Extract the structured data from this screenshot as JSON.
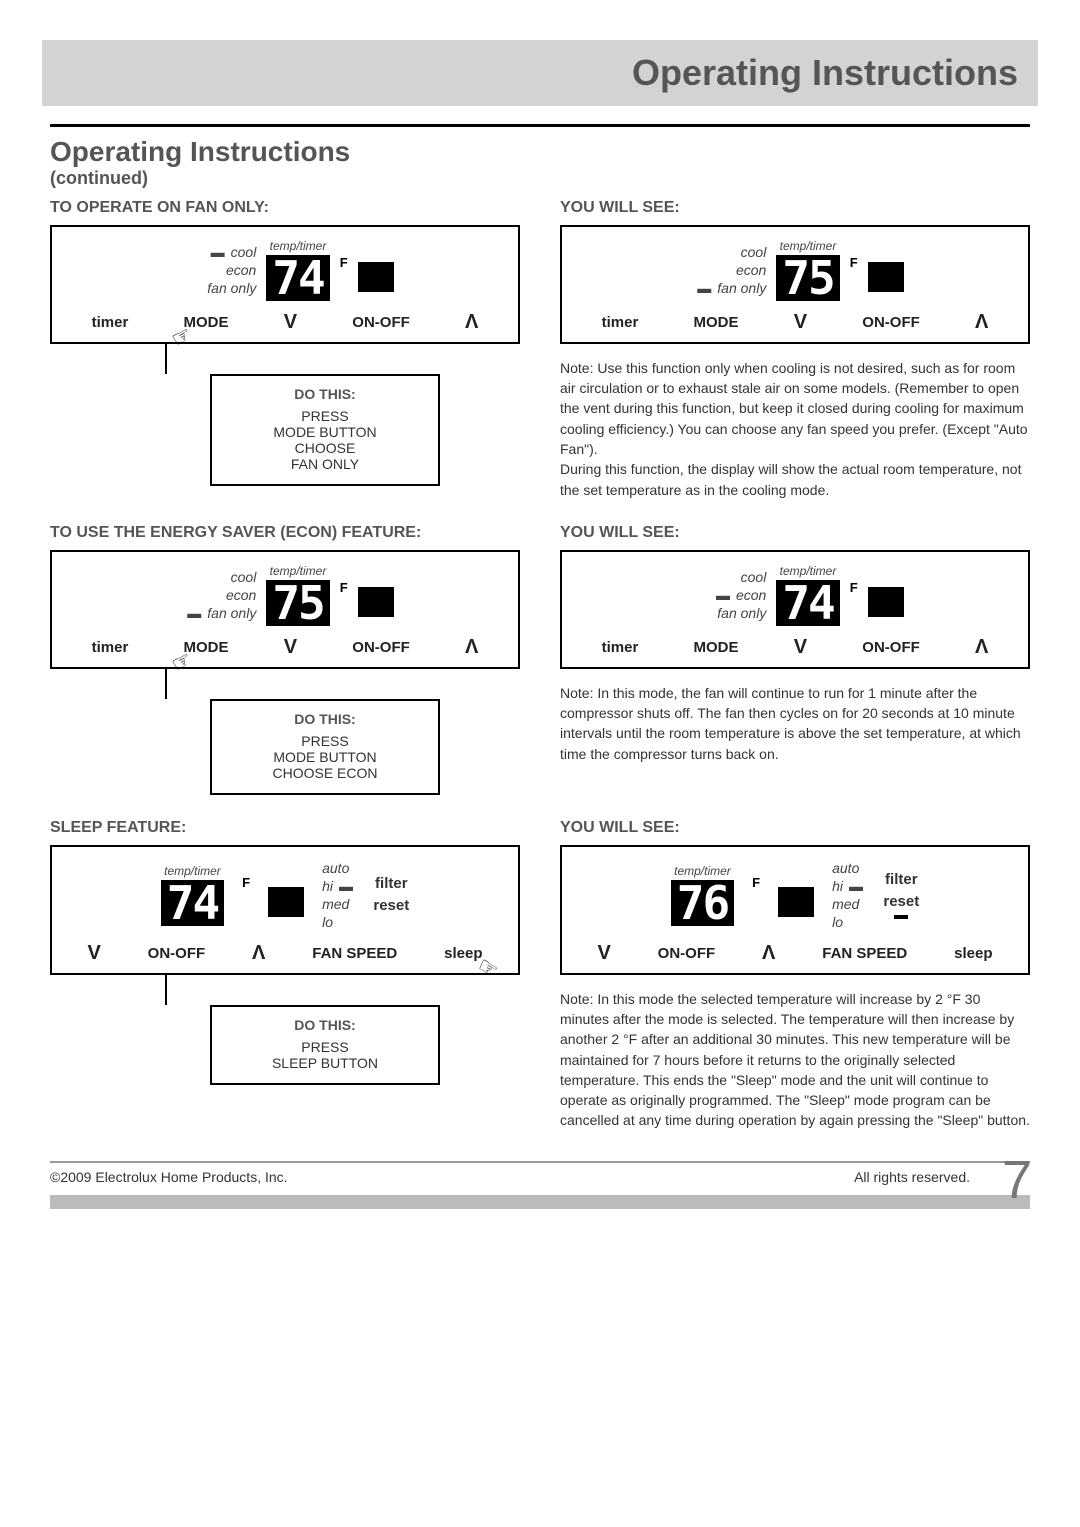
{
  "header": {
    "title": "Operating Instructions"
  },
  "section": {
    "title": "Operating Instructions",
    "subtitle": "(continued)"
  },
  "labels": {
    "timer": "timer",
    "mode": "MODE",
    "onoff": "ON-OFF",
    "fanspeed": "FAN SPEED",
    "sleep": "sleep",
    "filter": "filter",
    "reset": "reset",
    "cool": "cool",
    "econ": "econ",
    "fanonly": "fan only",
    "auto": "auto",
    "hi": "hi",
    "med": "med",
    "lo": "lo",
    "temp_timer": "temp/timer",
    "F": "F",
    "do_this": "DO THIS:",
    "you_will_see": "YOU WILL SEE:"
  },
  "rows": [
    {
      "left_head": "TO OPERATE ON FAN ONLY:",
      "panel_left": {
        "temp": "74",
        "indicator": "cool",
        "layout": "mode"
      },
      "callout": [
        "PRESS",
        "MODE BUTTON",
        "CHOOSE",
        "FAN ONLY"
      ],
      "right_head": "YOU WILL SEE:",
      "panel_right": {
        "temp": "75",
        "indicator": "fanonly",
        "layout": "mode"
      },
      "note": "Note: Use this function only when cooling is not desired, such as for room air circulation or to exhaust stale air on some models. (Remember to open the vent during this function, but keep it closed during cooling for maximum cooling efficiency.) You can choose any fan speed you prefer. (Except \"Auto Fan\").\nDuring this function, the display will show the actual room temperature, not the set temperature as in the cooling mode."
    },
    {
      "left_head": "TO USE THE ENERGY SAVER (ECON) FEATURE:",
      "panel_left": {
        "temp": "75",
        "indicator": "fanonly",
        "layout": "mode"
      },
      "callout": [
        "PRESS",
        "MODE BUTTON",
        "CHOOSE ECON"
      ],
      "right_head": "YOU WILL SEE:",
      "panel_right": {
        "temp": "74",
        "indicator": "econ",
        "layout": "mode"
      },
      "note": "Note: In this mode, the fan will continue to run for 1 minute after the compressor shuts off. The fan then cycles on for 20 seconds at 10 minute intervals until the room temperature is above the set temperature, at which time the compressor turns back on."
    },
    {
      "left_head": "SLEEP FEATURE:",
      "panel_left": {
        "temp": "74",
        "indicator": "hi",
        "layout": "fan",
        "sleep_on": false
      },
      "callout": [
        "PRESS",
        "SLEEP BUTTON"
      ],
      "right_head": "YOU WILL SEE:",
      "panel_right": {
        "temp": "76",
        "indicator": "hi",
        "layout": "fan",
        "sleep_on": true
      },
      "note": "Note: In this mode the selected temperature will increase by 2 °F 30 minutes after the mode is selected. The temperature will then increase by another 2 °F after an additional 30 minutes. This new temperature will be maintained for 7 hours before it returns to the originally selected temperature. This ends the \"Sleep\" mode and the unit will continue to operate as originally programmed. The \"Sleep\" mode program can be cancelled at any time during operation by again pressing the \"Sleep\" button."
    }
  ],
  "footer": {
    "left": "©2009 Electrolux Home Products, Inc.",
    "right": "All rights reserved.",
    "page": "7"
  },
  "colors": {
    "band": "#d3d3d3",
    "heading": "#555555",
    "text": "#333333",
    "black": "#000000",
    "footer_bar": "#bbbbbb"
  }
}
